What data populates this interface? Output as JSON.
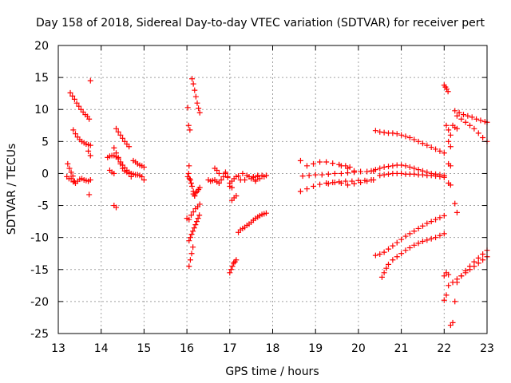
{
  "chart_data": {
    "type": "scatter",
    "title": "Day 158 of 2018, Sidereal Day-to-day VTEC variation (SDTVAR) for receiver pert",
    "xlabel": "GPS time / hours",
    "ylabel": "SDTVAR / TECUs",
    "xlim": [
      13,
      23
    ],
    "ylim": [
      -25,
      20
    ],
    "x_ticks": [
      "13",
      "14",
      "15",
      "16",
      "17",
      "18",
      "19",
      "20",
      "21",
      "22",
      "23"
    ],
    "y_ticks": [
      "-25",
      "-20",
      "-15",
      "-10",
      "-5",
      "0",
      "5",
      "10",
      "15",
      "20"
    ],
    "grid": true,
    "marker": "+",
    "color": "#ff0000",
    "series": [
      {
        "x": [
          13.75
        ],
        "y": [
          14.5
        ]
      },
      {
        "x": [
          13.72
        ],
        "y": [
          -3.3
        ]
      },
      {
        "x": [
          13.28,
          13.33,
          13.38,
          13.43,
          13.48,
          13.53,
          13.58,
          13.63,
          13.68,
          13.72
        ],
        "y": [
          12.6,
          12.1,
          11.6,
          11.0,
          10.5,
          10.0,
          9.6,
          9.2,
          8.9,
          8.5
        ]
      },
      {
        "x": [
          13.35,
          13.4,
          13.45,
          13.5,
          13.55,
          13.6,
          13.65,
          13.7,
          13.75
        ],
        "y": [
          6.8,
          6.2,
          5.7,
          5.3,
          5.0,
          4.8,
          4.6,
          4.5,
          4.4
        ]
      },
      {
        "x": [
          13.7,
          13.75
        ],
        "y": [
          3.5,
          2.8
        ]
      },
      {
        "x": [
          13.22,
          13.26,
          13.3,
          13.34,
          13.38
        ],
        "y": [
          1.5,
          0.8,
          0.2,
          -0.4,
          -1.2
        ]
      },
      {
        "x": [
          13.3,
          13.35,
          13.4,
          13.45,
          13.5,
          13.55,
          13.6,
          13.65,
          13.7,
          13.75
        ],
        "y": [
          -0.8,
          -1.3,
          -1.5,
          -1.2,
          -0.9,
          -0.8,
          -1.0,
          -1.1,
          -1.2,
          -1.0
        ]
      },
      {
        "x": [
          13.2,
          13.25
        ],
        "y": [
          -0.5,
          -0.8
        ]
      },
      {
        "x": [
          14.15,
          14.2,
          14.25,
          14.3,
          14.35,
          14.4,
          14.45,
          14.5,
          14.55,
          14.6,
          14.65,
          14.7,
          14.75,
          14.8,
          14.85,
          14.9,
          14.95,
          15.0
        ],
        "y": [
          2.5,
          2.7,
          2.8,
          2.8,
          2.6,
          2.3,
          1.8,
          1.3,
          0.9,
          0.5,
          0.2,
          0.0,
          -0.1,
          -0.2,
          -0.2,
          -0.3,
          -0.5,
          -1.0
        ]
      },
      {
        "x": [
          14.3,
          14.35,
          14.4,
          14.45,
          14.5,
          14.55,
          14.6,
          14.65,
          14.7
        ],
        "y": [
          4.0,
          3.2,
          2.5,
          1.5,
          0.8,
          0.4,
          0.2,
          0.0,
          -0.5
        ]
      },
      {
        "x": [
          14.35,
          14.4,
          14.45,
          14.5,
          14.55,
          14.6,
          14.65
        ],
        "y": [
          7.0,
          6.5,
          6.0,
          5.5,
          5.0,
          4.6,
          4.2
        ]
      },
      {
        "x": [
          14.3,
          14.35
        ],
        "y": [
          -5.0,
          -5.3
        ]
      },
      {
        "x": [
          14.75,
          14.8,
          14.85,
          14.9,
          14.95,
          15.0
        ],
        "y": [
          2.0,
          1.8,
          1.5,
          1.3,
          1.2,
          1.0
        ]
      },
      {
        "x": [
          14.2,
          14.25,
          14.3
        ],
        "y": [
          0.5,
          0.2,
          0.0
        ]
      },
      {
        "x": [
          16.02,
          16.05
        ],
        "y": [
          10.3,
          1.2
        ]
      },
      {
        "x": [
          16.04,
          16.07
        ],
        "y": [
          7.5,
          6.8
        ]
      },
      {
        "x": [
          16.12,
          16.15,
          16.18,
          16.21,
          16.24,
          16.27,
          16.3
        ],
        "y": [
          14.8,
          14.0,
          13.0,
          12.0,
          11.0,
          10.2,
          9.5
        ]
      },
      {
        "x": [
          16.02,
          16.04,
          16.06,
          16.08,
          16.1,
          16.12,
          16.15,
          16.18
        ],
        "y": [
          -0.5,
          0.0,
          -0.8,
          -1.0,
          -1.5,
          -2.0,
          -2.8,
          -3.5
        ]
      },
      {
        "x": [
          16.15,
          16.18,
          16.21,
          16.24,
          16.27,
          16.3
        ],
        "y": [
          -3.2,
          -3.5,
          -3.0,
          -2.8,
          -2.5,
          -2.2
        ]
      },
      {
        "x": [
          16.0,
          16.05,
          16.1,
          16.15,
          16.2,
          16.25,
          16.3
        ],
        "y": [
          -7.0,
          -7.2,
          -6.5,
          -6.0,
          -5.5,
          -5.2,
          -4.8
        ]
      },
      {
        "x": [
          16.05,
          16.08,
          16.11,
          16.14,
          16.17,
          16.2,
          16.23,
          16.26,
          16.29
        ],
        "y": [
          -10.5,
          -10.0,
          -9.5,
          -9.0,
          -8.5,
          -8.0,
          -7.5,
          -7.0,
          -6.5
        ]
      },
      {
        "x": [
          16.05,
          16.08,
          16.11,
          16.14
        ],
        "y": [
          -14.5,
          -13.5,
          -12.5,
          -11.5
        ]
      },
      {
        "x": [
          16.5,
          16.55,
          16.6,
          16.65,
          16.7,
          16.75,
          16.8,
          16.85,
          16.9,
          16.95,
          17.0,
          17.05,
          17.1,
          17.15,
          17.2
        ],
        "y": [
          -1.0,
          -1.2,
          -1.1,
          -1.0,
          -1.3,
          -1.5,
          -1.0,
          -0.5,
          0.0,
          -0.6,
          -1.5,
          -1.2,
          -0.8,
          -0.5,
          -0.4
        ]
      },
      {
        "x": [
          16.65,
          16.7,
          16.75
        ],
        "y": [
          0.8,
          0.5,
          0.0
        ]
      },
      {
        "x": [
          16.9,
          16.95,
          17.0,
          17.05
        ],
        "y": [
          0.2,
          -0.5,
          -2.0,
          -2.2
        ]
      },
      {
        "x": [
          17.05,
          17.1,
          17.15
        ],
        "y": [
          -4.2,
          -3.8,
          -3.5
        ]
      },
      {
        "x": [
          17.25,
          17.35,
          17.45,
          17.55,
          17.65,
          17.75,
          17.85
        ],
        "y": [
          -1.0,
          -1.0,
          -0.5,
          -0.5,
          -0.3,
          -0.3,
          -0.3
        ]
      },
      {
        "x": [
          17.3,
          17.4,
          17.5,
          17.6,
          17.7,
          17.8
        ],
        "y": [
          0.0,
          -0.3,
          -0.8,
          -1.0,
          -0.8,
          -0.5
        ]
      },
      {
        "x": [
          17.55,
          17.6,
          17.65
        ],
        "y": [
          -0.6,
          -1.2,
          -0.5
        ]
      },
      {
        "x": [
          17.2,
          17.25,
          17.3,
          17.35,
          17.4,
          17.45,
          17.5,
          17.55,
          17.6,
          17.65,
          17.7,
          17.75,
          17.8,
          17.85
        ],
        "y": [
          -9.2,
          -8.8,
          -8.6,
          -8.4,
          -8.1,
          -7.9,
          -7.6,
          -7.3,
          -7.0,
          -6.8,
          -6.6,
          -6.4,
          -6.3,
          -6.2
        ]
      },
      {
        "x": [
          17.0,
          17.03,
          17.06,
          17.09,
          17.12,
          17.15
        ],
        "y": [
          -15.5,
          -15.0,
          -14.5,
          -14.0,
          -13.8,
          -13.5
        ]
      },
      {
        "x": [
          18.65,
          18.8,
          18.95,
          19.1,
          19.25,
          19.4,
          19.55,
          19.7,
          19.85,
          20.0,
          20.15,
          20.3
        ],
        "y": [
          -2.8,
          -2.4,
          -2.0,
          -1.7,
          -1.5,
          -1.4,
          -1.3,
          -1.2,
          -1.2,
          -1.1,
          -1.1,
          -1.0
        ]
      },
      {
        "x": [
          18.7,
          18.85,
          19.0,
          19.15,
          19.3,
          19.45,
          19.6,
          19.75,
          19.9,
          20.05,
          20.2,
          20.35
        ],
        "y": [
          -0.4,
          -0.3,
          -0.2,
          -0.2,
          -0.1,
          0.0,
          0.0,
          0.1,
          0.2,
          0.3,
          0.3,
          0.4
        ]
      },
      {
        "x": [
          18.65,
          18.8,
          18.95,
          19.1,
          19.25,
          19.4,
          19.55,
          19.7,
          19.8
        ],
        "y": [
          2.0,
          1.2,
          1.5,
          1.8,
          1.8,
          1.6,
          1.4,
          1.2,
          1.0
        ]
      },
      {
        "x": [
          19.3,
          19.45,
          19.6,
          19.75,
          19.9,
          20.05,
          20.2,
          20.35
        ],
        "y": [
          -1.6,
          -1.4,
          -1.5,
          -1.8,
          -1.6,
          -1.4,
          -1.2,
          -1.0
        ]
      },
      {
        "x": [
          19.6,
          19.75,
          19.9
        ],
        "y": [
          1.2,
          0.8,
          0.4
        ]
      },
      {
        "x": [
          20.3,
          20.4,
          20.5,
          20.6,
          20.7,
          20.8,
          20.9,
          21.0,
          21.1,
          21.2,
          21.3,
          21.4,
          21.5,
          21.6,
          21.7,
          21.8,
          21.9,
          22.0
        ],
        "y": [
          0.4,
          0.6,
          0.8,
          1.0,
          1.1,
          1.2,
          1.3,
          1.3,
          1.2,
          1.0,
          0.8,
          0.6,
          0.4,
          0.2,
          0.0,
          -0.1,
          -0.2,
          -0.3
        ]
      },
      {
        "x": [
          20.5,
          20.6,
          20.7,
          20.8,
          20.9,
          21.0,
          21.1,
          21.2,
          21.3,
          21.4,
          21.5,
          21.6,
          21.7,
          21.8,
          21.9,
          22.0
        ],
        "y": [
          -0.3,
          -0.2,
          -0.1,
          0.0,
          0.0,
          0.0,
          -0.1,
          -0.1,
          -0.1,
          -0.2,
          -0.2,
          -0.3,
          -0.3,
          -0.4,
          -0.5,
          -0.6
        ]
      },
      {
        "x": [
          20.4,
          20.5,
          20.6,
          20.7,
          20.8,
          20.9,
          21.0,
          21.1,
          21.2,
          21.3,
          21.4,
          21.5,
          21.6,
          21.7,
          21.8,
          21.9,
          22.0
        ],
        "y": [
          6.7,
          6.5,
          6.4,
          6.3,
          6.3,
          6.2,
          6.0,
          5.8,
          5.6,
          5.3,
          5.0,
          4.7,
          4.4,
          4.1,
          3.8,
          3.5,
          3.2
        ]
      },
      {
        "x": [
          20.4,
          20.5,
          20.6,
          20.7,
          20.8,
          20.9,
          21.0,
          21.1,
          21.2,
          21.3,
          21.4,
          21.5,
          21.6,
          21.7,
          21.8,
          21.9,
          22.0
        ],
        "y": [
          -12.8,
          -12.6,
          -12.3,
          -11.8,
          -11.3,
          -10.8,
          -10.3,
          -9.8,
          -9.4,
          -9.0,
          -8.6,
          -8.2,
          -7.8,
          -7.5,
          -7.2,
          -6.9,
          -6.6
        ]
      },
      {
        "x": [
          20.55,
          20.6,
          20.65,
          20.7,
          20.8,
          20.9,
          21.0,
          21.1,
          21.2,
          21.3,
          21.4,
          21.5,
          21.6,
          21.7,
          21.8,
          21.9,
          22.0
        ],
        "y": [
          -16.2,
          -15.5,
          -14.8,
          -14.2,
          -13.5,
          -13.0,
          -12.5,
          -12.0,
          -11.6,
          -11.2,
          -10.9,
          -10.6,
          -10.4,
          -10.2,
          -10.0,
          -9.7,
          -9.4
        ]
      },
      {
        "x": [
          22.0,
          22.03,
          22.06,
          22.09
        ],
        "y": [
          13.8,
          13.5,
          13.2,
          12.8
        ]
      },
      {
        "x": [
          22.05,
          22.1,
          22.15
        ],
        "y": [
          7.5,
          6.8,
          6.0
        ]
      },
      {
        "x": [
          22.1,
          22.15
        ],
        "y": [
          5.0,
          4.2
        ]
      },
      {
        "x": [
          22.1,
          22.15
        ],
        "y": [
          1.5,
          1.2
        ]
      },
      {
        "x": [
          22.25,
          22.3
        ],
        "y": [
          -4.7,
          -6.1
        ]
      },
      {
        "x": [
          22.1,
          22.15
        ],
        "y": [
          -1.5,
          -1.8
        ]
      },
      {
        "x": [
          22.25,
          22.35,
          22.45,
          22.55,
          22.65,
          22.75,
          22.85,
          22.95,
          23.0
        ],
        "y": [
          9.8,
          9.5,
          9.2,
          9.0,
          8.8,
          8.5,
          8.3,
          8.1,
          8.0
        ]
      },
      {
        "x": [
          22.3,
          22.4,
          22.5,
          22.6,
          22.7,
          22.8,
          22.9,
          23.0
        ],
        "y": [
          9.0,
          8.5,
          8.0,
          7.5,
          7.0,
          6.3,
          5.6,
          5.0
        ]
      },
      {
        "x": [
          22.2,
          22.25,
          22.3
        ],
        "y": [
          7.5,
          7.2,
          7.0
        ]
      },
      {
        "x": [
          22.1,
          22.2,
          22.3,
          22.4,
          22.5,
          22.6,
          22.7,
          22.8,
          22.9,
          23.0
        ],
        "y": [
          -17.5,
          -17.0,
          -16.5,
          -16.0,
          -15.5,
          -15.0,
          -14.5,
          -14.0,
          -13.5,
          -13.0
        ]
      },
      {
        "x": [
          22.3,
          22.4,
          22.5,
          22.6,
          22.7,
          22.8,
          22.9,
          23.0
        ],
        "y": [
          -17.0,
          -16.0,
          -15.2,
          -14.5,
          -13.8,
          -13.2,
          -12.6,
          -12.0
        ]
      },
      {
        "x": [
          22.0,
          22.05,
          22.1
        ],
        "y": [
          -16.0,
          -15.5,
          -15.8
        ]
      },
      {
        "x": [
          22.0,
          22.05
        ],
        "y": [
          -19.8,
          -19.0
        ]
      },
      {
        "x": [
          22.15,
          22.2
        ],
        "y": [
          -23.7,
          -23.3
        ]
      },
      {
        "x": [
          22.25
        ],
        "y": [
          -20.0
        ]
      }
    ]
  }
}
